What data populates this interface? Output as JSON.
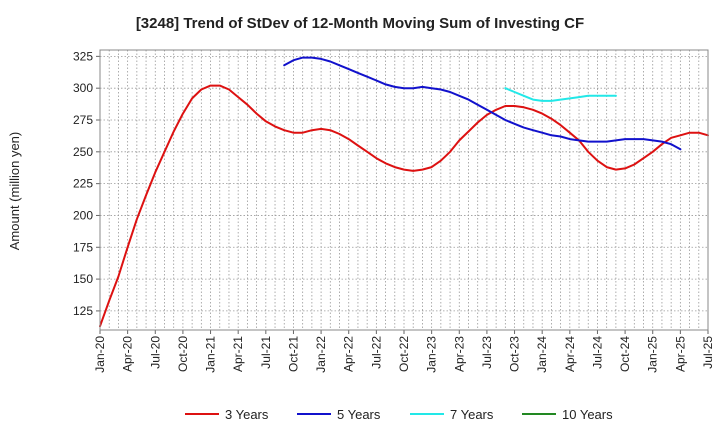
{
  "chart_data": {
    "type": "line",
    "title": "[3248]  Trend of StDev of 12-Month Moving Sum of Investing CF",
    "xlabel": "",
    "ylabel": "Amount (million yen)",
    "ylim": [
      110,
      330
    ],
    "yticks": [
      125,
      150,
      175,
      200,
      225,
      250,
      275,
      300,
      325
    ],
    "xticks": [
      "Jan-20",
      "Apr-20",
      "Jul-20",
      "Oct-20",
      "Jan-21",
      "Apr-21",
      "Jul-21",
      "Oct-21",
      "Jan-22",
      "Apr-22",
      "Jul-22",
      "Oct-22",
      "Jan-23",
      "Apr-23",
      "Jul-23",
      "Oct-23",
      "Jan-24",
      "Apr-24",
      "Jul-24",
      "Oct-24",
      "Jan-25",
      "Apr-25",
      "Jul-25"
    ],
    "grid": true,
    "legend_position": "bottom",
    "series": [
      {
        "name": "3 Years",
        "color": "#dd1111",
        "start": "2020-01",
        "values": [
          113,
          133,
          152,
          175,
          197,
          216,
          234,
          250,
          266,
          280,
          292,
          299,
          302,
          302,
          299,
          293,
          287,
          280,
          274,
          270,
          267,
          265,
          265,
          267,
          268,
          267,
          264,
          260,
          255,
          250,
          245,
          241,
          238,
          236,
          235,
          236,
          238,
          243,
          250,
          259,
          266,
          273,
          279,
          283,
          286,
          286,
          285,
          283,
          280,
          276,
          271,
          265,
          259,
          250,
          243,
          238,
          236,
          237,
          240,
          245,
          250,
          256,
          261,
          263,
          265,
          265,
          263
        ]
      },
      {
        "name": "5 Years",
        "color": "#1111cc",
        "start": "2021-09",
        "values": [
          318,
          322,
          324,
          324,
          323,
          321,
          318,
          315,
          312,
          309,
          306,
          303,
          301,
          300,
          300,
          301,
          300,
          299,
          297,
          294,
          291,
          287,
          283,
          279,
          275,
          272,
          269,
          267,
          265,
          263,
          262,
          260,
          259,
          258,
          258,
          258,
          259,
          260,
          260,
          260,
          259,
          258,
          256,
          252
        ]
      },
      {
        "name": "7 Years",
        "color": "#22e8e8",
        "start": "2023-09",
        "values": [
          300,
          297,
          294,
          291,
          290,
          290,
          291,
          292,
          293,
          294,
          294,
          294,
          294
        ]
      },
      {
        "name": "10 Years",
        "color": "#228822",
        "start": "2020-01",
        "values": []
      }
    ]
  }
}
